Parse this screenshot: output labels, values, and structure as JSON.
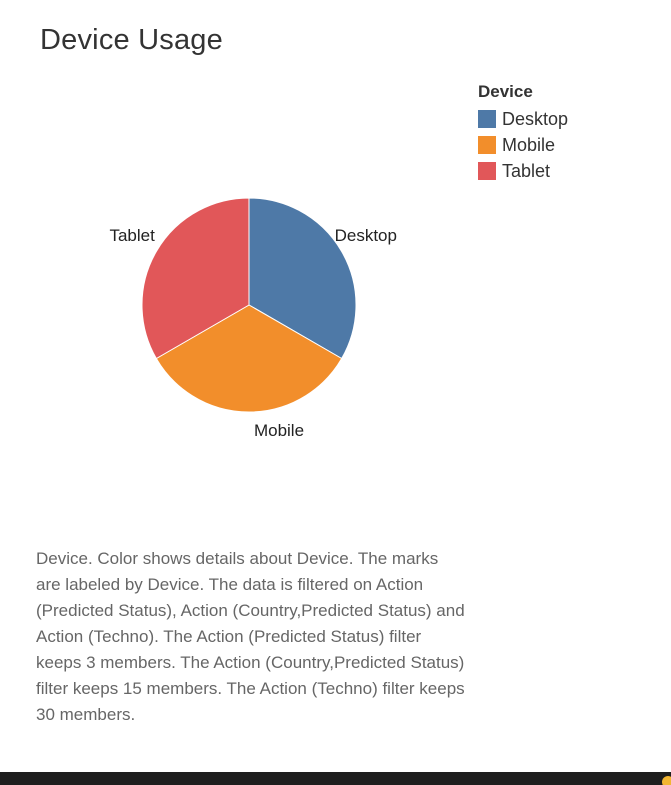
{
  "chart_data": {
    "type": "pie",
    "title": "Device Usage",
    "legend_title": "Device",
    "legend_position": "top-right",
    "categories": [
      "Desktop",
      "Mobile",
      "Tablet"
    ],
    "values": [
      33.3,
      33.3,
      33.3
    ],
    "colors": [
      "#4e79a7",
      "#f28e2b",
      "#e15759"
    ]
  },
  "description": "Device.  Color shows details about Device.  The marks are labeled by Device. The data is filtered on Action (Predicted Status), Action (Country,Predicted Status) and Action (Techno). The Action (Predicted Status) filter keeps 3 members. The Action (Country,Predicted Status) filter keeps 15 members. The Action (Techno) filter keeps 30 members."
}
